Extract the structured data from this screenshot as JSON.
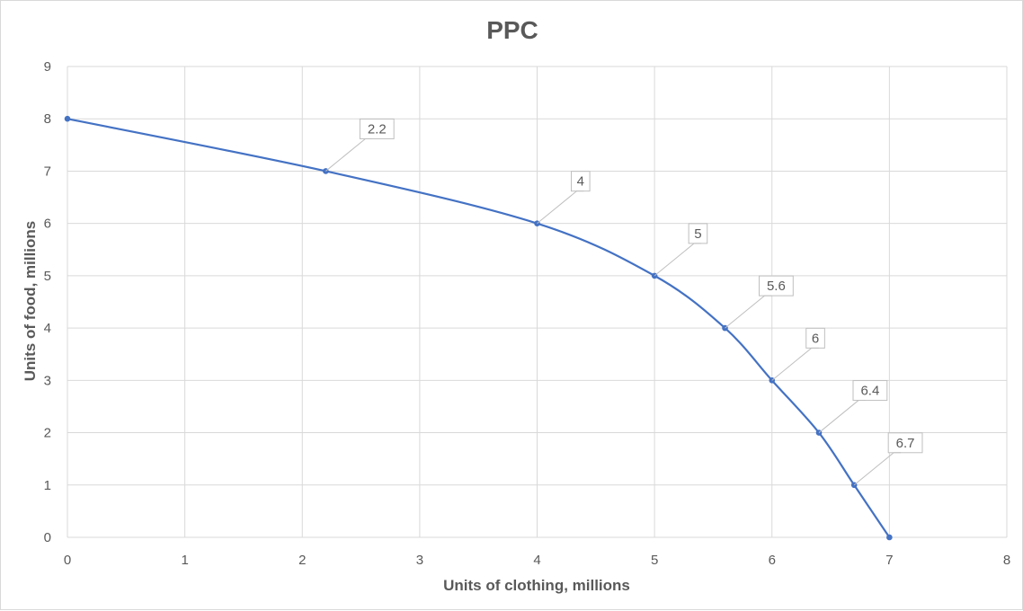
{
  "chart_data": {
    "type": "line",
    "title": "PPC",
    "xlabel": "Units of clothing,  millions",
    "ylabel": "Units of food,  millions",
    "xlim": [
      0,
      8
    ],
    "ylim": [
      0,
      9
    ],
    "x_ticks": [
      "0",
      "1",
      "2",
      "3",
      "4",
      "5",
      "6",
      "7",
      "8"
    ],
    "y_ticks": [
      "0",
      "1",
      "2",
      "3",
      "4",
      "5",
      "6",
      "7",
      "8",
      "9"
    ],
    "grid": true,
    "legend": "none",
    "smooth": true,
    "colors": {
      "series": "#4472c4",
      "grid": "#d9d9d9",
      "text": "#595959"
    },
    "series": [
      {
        "points": [
          {
            "x": 0,
            "y": 8,
            "label": ""
          },
          {
            "x": 2.2,
            "y": 7,
            "label": "2.2"
          },
          {
            "x": 4,
            "y": 6,
            "label": "4"
          },
          {
            "x": 5,
            "y": 5,
            "label": "5"
          },
          {
            "x": 5.6,
            "y": 4,
            "label": "5.6"
          },
          {
            "x": 6,
            "y": 3,
            "label": "6"
          },
          {
            "x": 6.4,
            "y": 2,
            "label": "6.4"
          },
          {
            "x": 6.7,
            "y": 1,
            "label": "6.7"
          },
          {
            "x": 7,
            "y": 0,
            "label": ""
          }
        ]
      }
    ]
  }
}
